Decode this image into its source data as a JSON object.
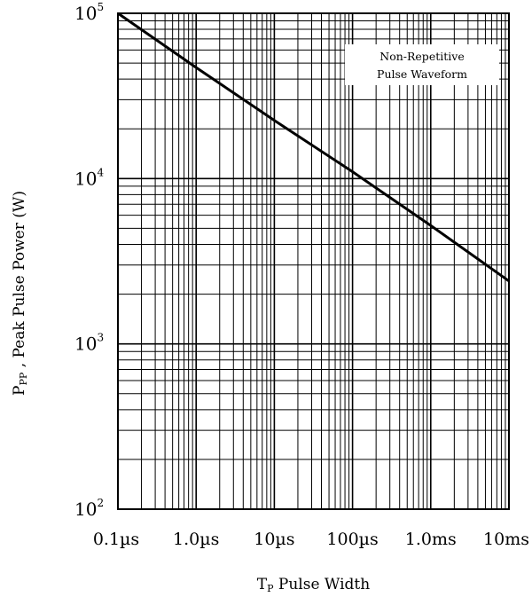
{
  "chart_data": {
    "type": "line",
    "title": "",
    "xlabel": "T",
    "xlabel_sub": "P",
    "xlabel_rest": " Pulse Width",
    "ylabel": "P",
    "ylabel_sub": "PP",
    "ylabel_rest": " , Peak Pulse Power (W)",
    "x_scale": "log",
    "y_scale": "log",
    "xlim_seconds": [
      1e-07,
      0.01
    ],
    "ylim_watts": [
      100,
      100000
    ],
    "grid": true,
    "x_tick_values_seconds": [
      1e-07,
      1e-06,
      1e-05,
      0.0001,
      0.001,
      0.01
    ],
    "x_tick_labels": [
      "0.1µs",
      "1.0µs",
      "10µs",
      "100µs",
      "1.0ms",
      "10ms"
    ],
    "y_tick_values_watts": [
      100,
      1000,
      10000,
      100000
    ],
    "y_tick_labels": [
      {
        "base": "10",
        "exp": "2"
      },
      {
        "base": "10",
        "exp": "3"
      },
      {
        "base": "10",
        "exp": "4"
      },
      {
        "base": "10",
        "exp": "5"
      }
    ],
    "annotation": [
      "Non-Repetitive",
      "Pulse Waveform"
    ],
    "series": [
      {
        "x_seconds": [
          1e-07,
          1e-06,
          1e-05,
          0.0001,
          0.001,
          0.01
        ],
        "y_watts": [
          100000,
          47000,
          22500,
          11000,
          5200,
          2400
        ]
      }
    ],
    "colors": {
      "line": "#000000",
      "grid": "#000000",
      "background": "#ffffff"
    }
  }
}
